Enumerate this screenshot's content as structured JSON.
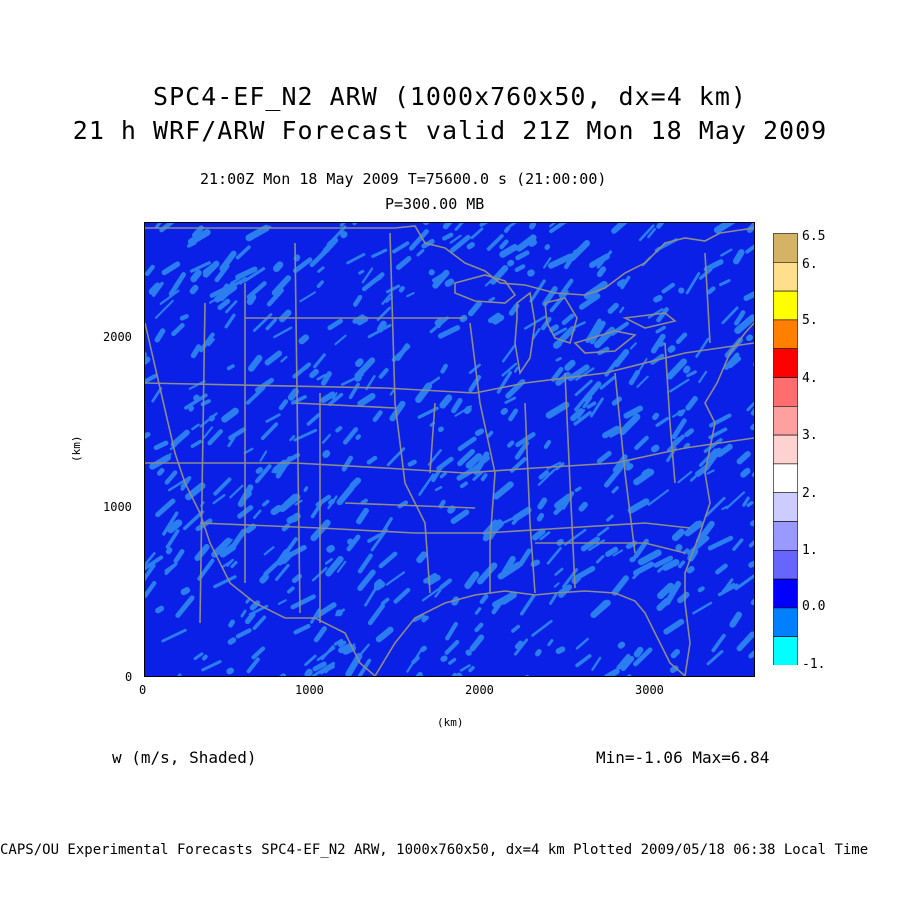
{
  "title": {
    "line1": "SPC4-EF_N2 ARW (1000x760x50, dx=4 km)",
    "line2": "21 h WRF/ARW Forecast valid 21Z Mon 18 May 2009"
  },
  "subtitle": {
    "time": "21:00Z Mon 18 May 2009    T=75600.0 s (21:00:00)",
    "level": "P=300.00 MB"
  },
  "axes": {
    "xlabel": "(km)",
    "ylabel": "(km)",
    "xticks": [
      "0",
      "1000",
      "2000",
      "3000"
    ],
    "yticks": [
      "0",
      "1000",
      "2000"
    ],
    "xlim": [
      0,
      3600
    ],
    "ylim": [
      0,
      2680
    ]
  },
  "field": {
    "name": "w (m/s, Shaded)",
    "minmax": "Min=-1.06 Max=6.84"
  },
  "colorbar": {
    "labels": [
      "6.5",
      "6.",
      "5.",
      "4.",
      "3.",
      "2.",
      "1.",
      "0.0",
      "-1."
    ],
    "colors": [
      "#d4b464",
      "#ffde8c",
      "#ffff00",
      "#ff8000",
      "#ff0000",
      "#ff6e6e",
      "#ffa0a0",
      "#ffd2d2",
      "#ffffff",
      "#ccccff",
      "#9999ff",
      "#6666ff",
      "#0000ff",
      "#0080ff",
      "#00ffff"
    ]
  },
  "colors": {
    "background": "#0a20e6",
    "secondary": "#2a7ef0",
    "boundaries": "#8c8c8c"
  },
  "footer": "CAPS/OU Experimental Forecasts  SPC4-EF_N2 ARW, 1000x760x50, dx=4 km  Plotted 2009/05/18 06:38 Local Time"
}
